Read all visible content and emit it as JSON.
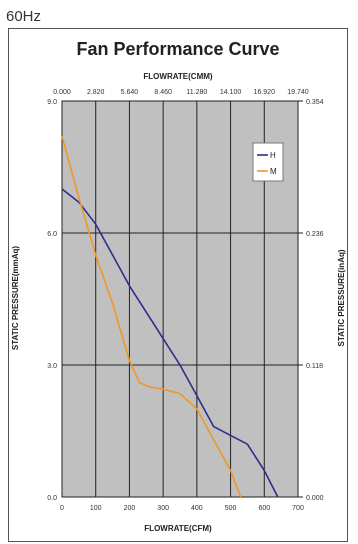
{
  "header": {
    "frequency": "60Hz"
  },
  "chart_data": {
    "type": "line",
    "title": "Fan Performance Curve",
    "xlabel": "FLOWRATE(CFM)",
    "x2label": "FLOWRATE(CMM)",
    "ylabel": "STATIC PRESSURE(mmAq)",
    "y2label": "STATIC PRESSURE(inAq)",
    "xlim": [
      0,
      700
    ],
    "ylim": [
      0,
      9
    ],
    "x_ticks": [
      "0",
      "100",
      "200",
      "300",
      "400",
      "500",
      "600",
      "700"
    ],
    "x2_ticks": [
      "0.000",
      "2.820",
      "5.640",
      "8.460",
      "11.280",
      "14.100",
      "16.920",
      "19.740"
    ],
    "y_ticks": [
      "0.0",
      "3.0",
      "6.0",
      "9.0"
    ],
    "y2_ticks": [
      "0.000",
      "0.118",
      "0.236",
      "0.354"
    ],
    "grid": true,
    "legend_position": "top-right",
    "colors": {
      "plot_bg": "#c0c0c0",
      "grid": "#222222",
      "H": "#2e2e8a",
      "M": "#f0962a"
    },
    "series": [
      {
        "name": "H",
        "x": [
          0,
          50,
          100,
          150,
          200,
          250,
          300,
          350,
          400,
          450,
          500,
          550,
          600,
          640
        ],
        "y": [
          7.0,
          6.7,
          6.2,
          5.5,
          4.8,
          4.2,
          3.6,
          3.0,
          2.3,
          1.6,
          1.4,
          1.2,
          0.6,
          0.0
        ]
      },
      {
        "name": "M",
        "x": [
          0,
          50,
          100,
          150,
          200,
          230,
          260,
          300,
          350,
          400,
          450,
          500,
          530
        ],
        "y": [
          8.2,
          6.8,
          5.5,
          4.4,
          3.1,
          2.6,
          2.5,
          2.45,
          2.35,
          2.0,
          1.3,
          0.6,
          0.0
        ]
      }
    ]
  }
}
